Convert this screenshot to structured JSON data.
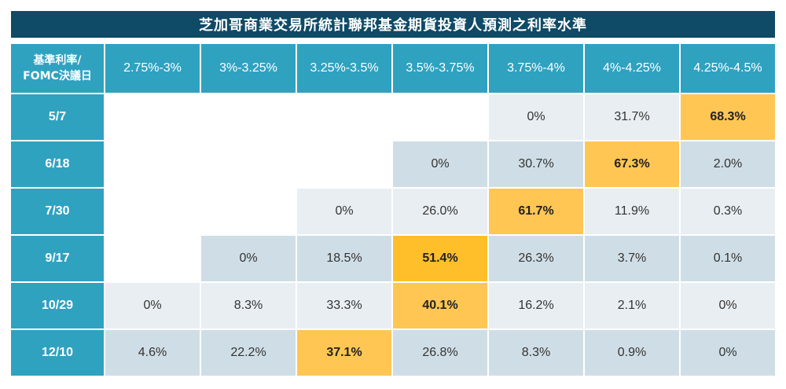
{
  "title": "芝加哥商業交易所統計聯邦基金期貨投資人預測之利率水準",
  "corner": {
    "line1": "基準利率/",
    "line2": "FOMC決議日"
  },
  "columns": [
    "2.75%-3%",
    "3%-3.25%",
    "3.25%-3.5%",
    "3.5%-3.75%",
    "3.75%-4%",
    "4%-4.25%",
    "4.25%-4.5%"
  ],
  "rows": [
    {
      "label": "5/7",
      "values": [
        "",
        "",
        "",
        "",
        "0%",
        "31.7%",
        "68.3%"
      ]
    },
    {
      "label": "6/18",
      "values": [
        "",
        "",
        "",
        "0%",
        "30.7%",
        "67.3%",
        "2.0%"
      ]
    },
    {
      "label": "7/30",
      "values": [
        "",
        "",
        "0%",
        "26.0%",
        "61.7%",
        "11.9%",
        "0.3%"
      ]
    },
    {
      "label": "9/17",
      "values": [
        "",
        "0%",
        "18.5%",
        "51.4%",
        "26.3%",
        "3.7%",
        "0.1%"
      ]
    },
    {
      "label": "10/29",
      "values": [
        "0%",
        "8.3%",
        "33.3%",
        "40.1%",
        "16.2%",
        "2.1%",
        "0%"
      ]
    },
    {
      "label": "12/10",
      "values": [
        "4.6%",
        "22.2%",
        "37.1%",
        "26.8%",
        "8.3%",
        "0.9%",
        "0%"
      ]
    }
  ],
  "colors": {
    "title_bg": "#0f4a66",
    "header_bg": "#2fa2c0",
    "cell_light": "#e8eef2",
    "cell_mid": "#cfdee6",
    "highlight": "#ffc654",
    "highlight_strong": "#ffbf2a"
  }
}
